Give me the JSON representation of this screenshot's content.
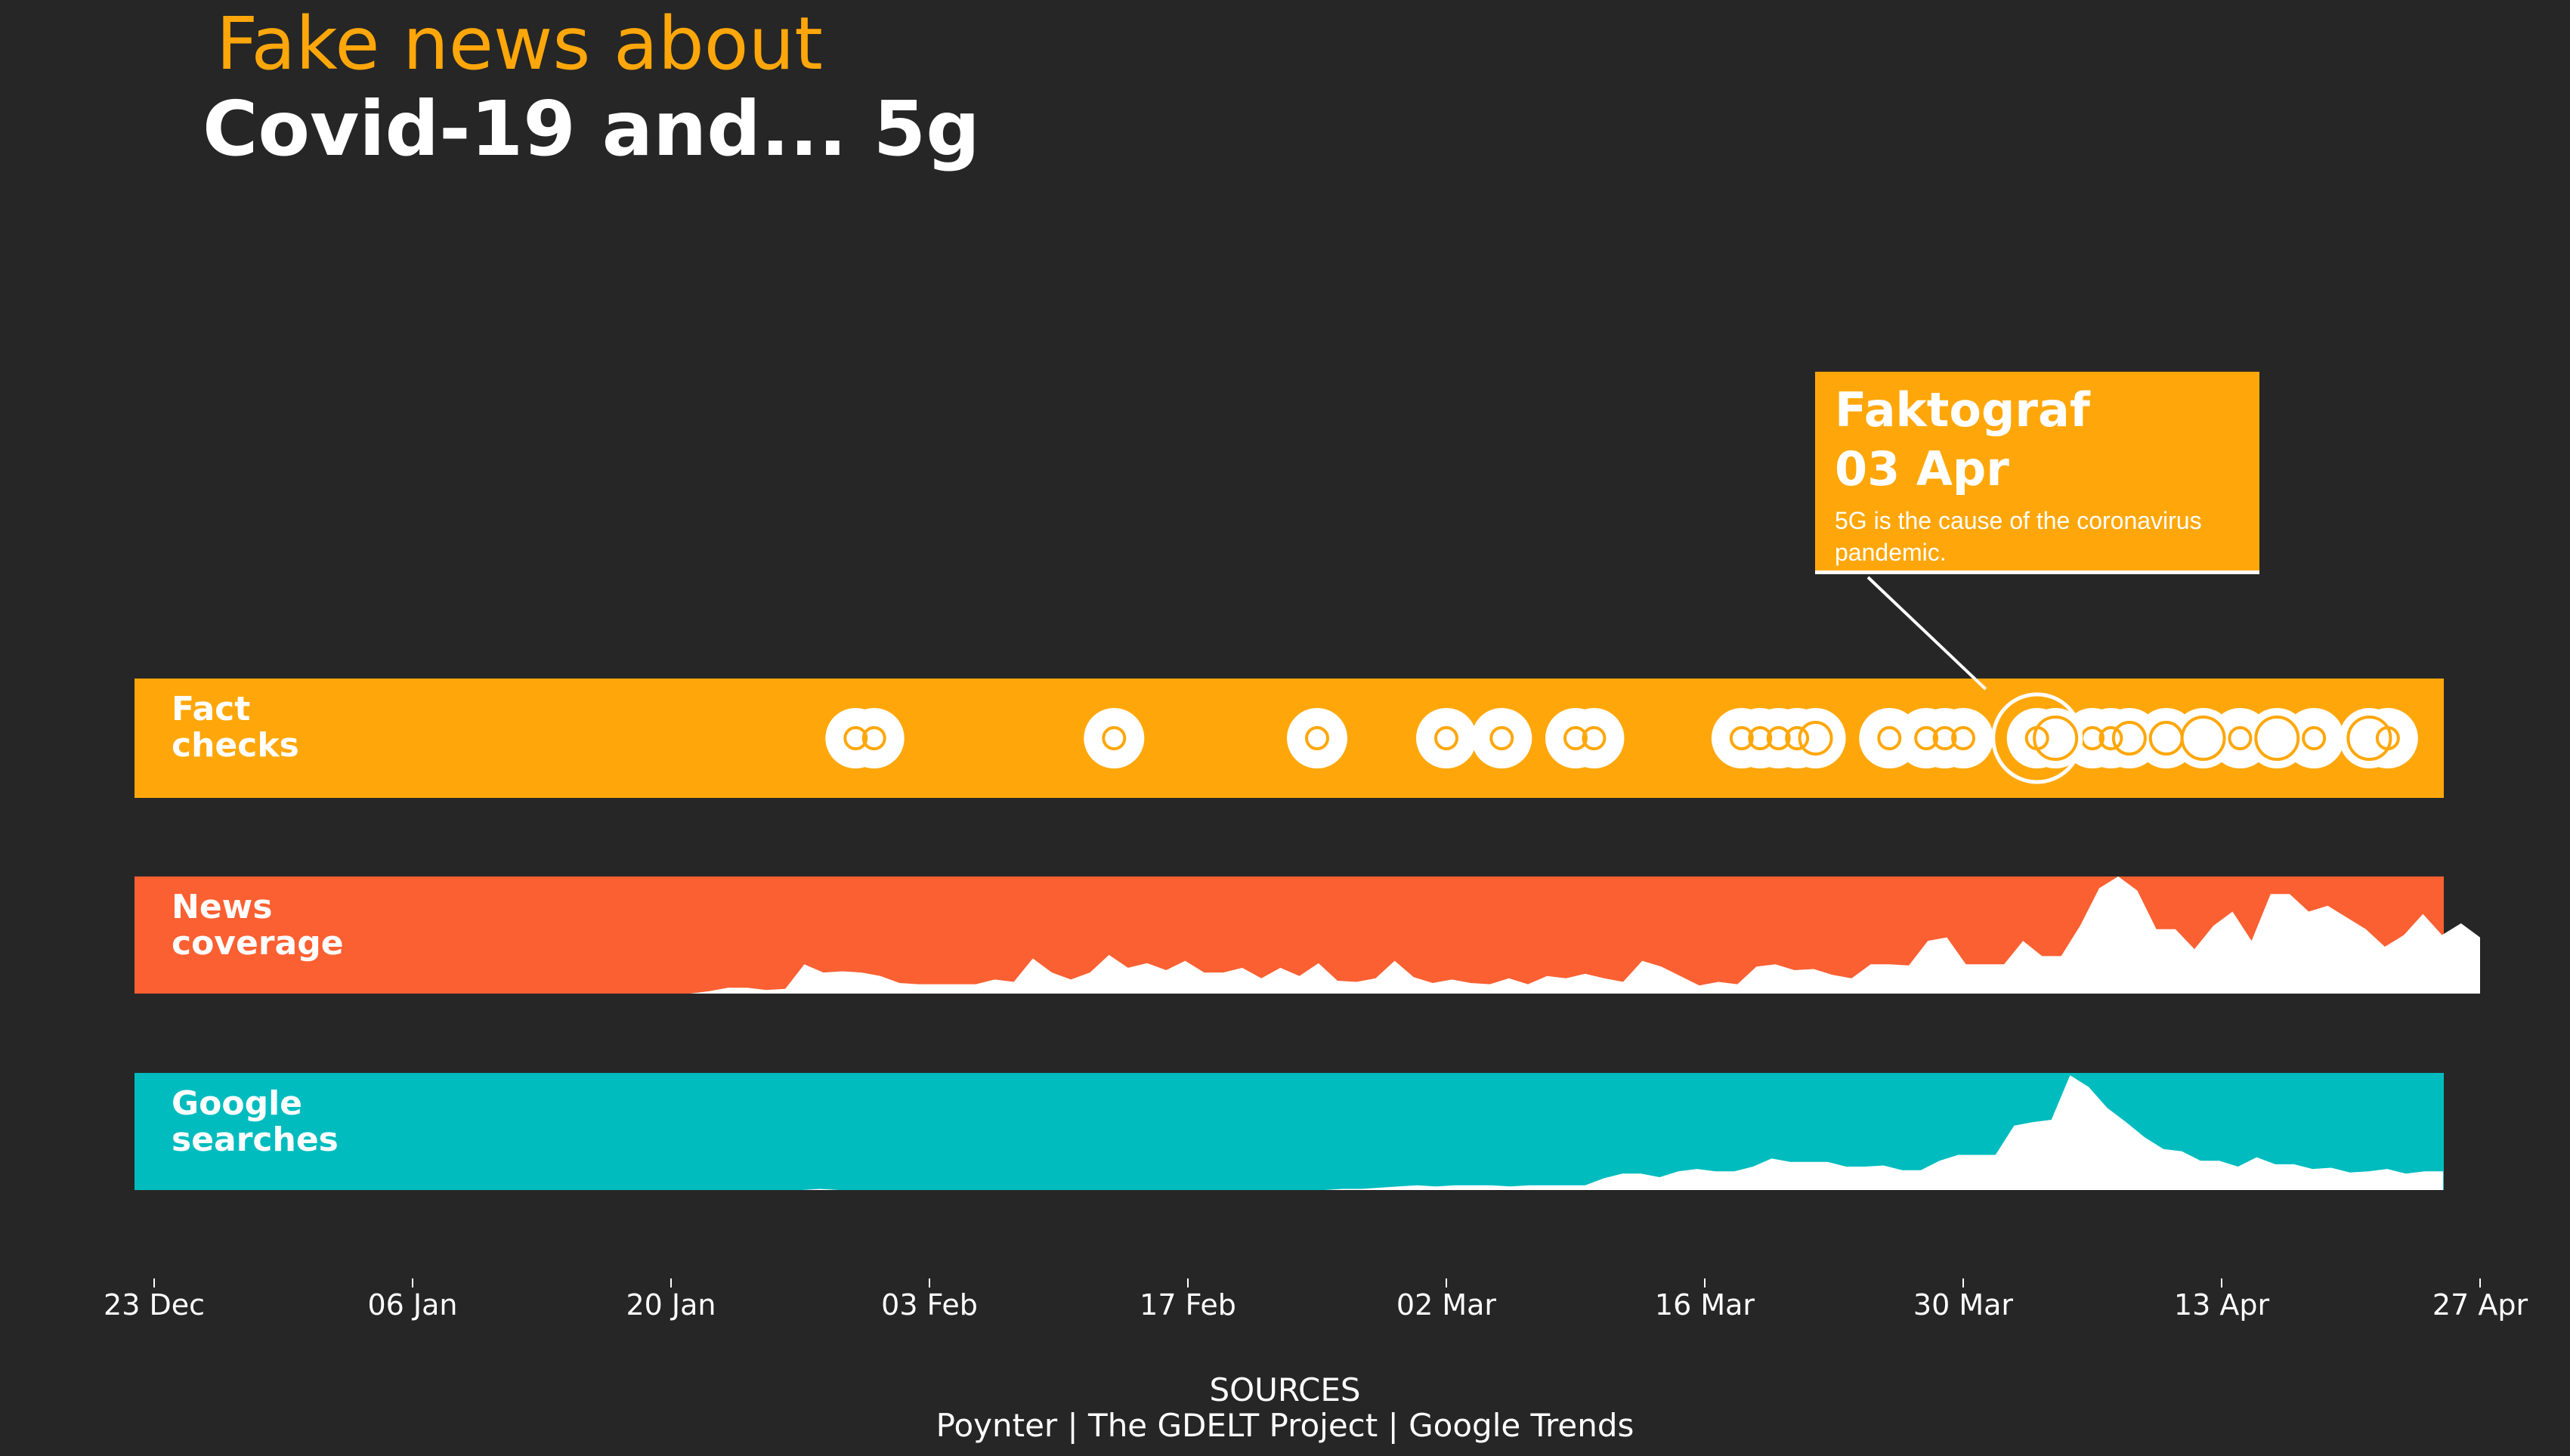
{
  "title_line1": "Fake news about",
  "title_line2": "Covid-19 and... 5g",
  "colors": {
    "background": "#262626",
    "fact_band": "#ffa70a",
    "news_band": "#fa6032",
    "google_band": "#00bcbf",
    "marks": "#ffffff"
  },
  "sources_heading": "SOURCES",
  "sources_line": "Poynter | The GDELT Project | Google Trends",
  "tooltip": {
    "source": "Faktograf",
    "date": "03 Apr",
    "claim": "5G is the cause of the coronavirus pandemic."
  },
  "chart_data": {
    "type": "area",
    "x_axis": {
      "range": [
        "2019-12-23",
        "2020-04-27"
      ],
      "ticks": [
        {
          "date": "2019-12-23",
          "label": "23 Dec"
        },
        {
          "date": "2020-01-06",
          "label": "06 Jan"
        },
        {
          "date": "2020-01-20",
          "label": "20 Jan"
        },
        {
          "date": "2020-02-03",
          "label": "03 Feb"
        },
        {
          "date": "2020-02-17",
          "label": "17 Feb"
        },
        {
          "date": "2020-03-02",
          "label": "02 Mar"
        },
        {
          "date": "2020-03-16",
          "label": "16 Mar"
        },
        {
          "date": "2020-03-30",
          "label": "30 Mar"
        },
        {
          "date": "2020-04-13",
          "label": "13 Apr"
        },
        {
          "date": "2020-04-27",
          "label": "27 Apr"
        }
      ]
    },
    "bands": [
      {
        "label_lines": [
          "Fact",
          "checks"
        ],
        "type": "bubbles",
        "highlighted": "2020-04-03",
        "points": [
          {
            "date": "2020-01-30",
            "n": 1
          },
          {
            "date": "2020-01-31",
            "n": 1
          },
          {
            "date": "2020-02-13",
            "n": 1
          },
          {
            "date": "2020-02-24",
            "n": 1
          },
          {
            "date": "2020-03-02",
            "n": 1
          },
          {
            "date": "2020-03-05",
            "n": 1
          },
          {
            "date": "2020-03-09",
            "n": 1
          },
          {
            "date": "2020-03-10",
            "n": 1
          },
          {
            "date": "2020-03-18",
            "n": 1
          },
          {
            "date": "2020-03-19",
            "n": 1
          },
          {
            "date": "2020-03-20",
            "n": 1
          },
          {
            "date": "2020-03-21",
            "n": 1
          },
          {
            "date": "2020-03-22",
            "n": 2
          },
          {
            "date": "2020-03-26",
            "n": 1
          },
          {
            "date": "2020-03-28",
            "n": 1
          },
          {
            "date": "2020-03-29",
            "n": 1
          },
          {
            "date": "2020-03-30",
            "n": 1
          },
          {
            "date": "2020-04-03",
            "n": 1
          },
          {
            "date": "2020-04-04",
            "n": 3
          },
          {
            "date": "2020-04-06",
            "n": 1
          },
          {
            "date": "2020-04-07",
            "n": 1
          },
          {
            "date": "2020-04-08",
            "n": 2
          },
          {
            "date": "2020-04-10",
            "n": 2
          },
          {
            "date": "2020-04-12",
            "n": 3
          },
          {
            "date": "2020-04-14",
            "n": 1
          },
          {
            "date": "2020-04-16",
            "n": 3
          },
          {
            "date": "2020-04-18",
            "n": 1
          },
          {
            "date": "2020-04-21",
            "n": 3
          },
          {
            "date": "2020-04-22",
            "n": 1
          }
        ]
      },
      {
        "label_lines": [
          "News",
          "coverage"
        ],
        "type": "area",
        "ylim": [
          0,
          100
        ],
        "start": "2020-01-20",
        "values": [
          0,
          0,
          2,
          5,
          5,
          3,
          4,
          25,
          18,
          19,
          18,
          15,
          9,
          8,
          8,
          8,
          8,
          12,
          10,
          30,
          18,
          12,
          18,
          33,
          22,
          26,
          20,
          28,
          18,
          18,
          22,
          13,
          22,
          15,
          26,
          11,
          10,
          13,
          28,
          14,
          9,
          12,
          9,
          8,
          13,
          8,
          15,
          13,
          17,
          13,
          10,
          28,
          23,
          15,
          7,
          10,
          8,
          23,
          25,
          20,
          21,
          16,
          13,
          25,
          25,
          24,
          45,
          48,
          25,
          25,
          25,
          45,
          32,
          32,
          58,
          90,
          110,
          88,
          55,
          55,
          38,
          58,
          70,
          45,
          85,
          85,
          70,
          75,
          65,
          55,
          40,
          50,
          68,
          50,
          60,
          48
        ]
      },
      {
        "label_lines": [
          "Google",
          "searches"
        ],
        "type": "area",
        "ylim": [
          0,
          100
        ],
        "start": "2020-01-20",
        "end": "2020-04-25",
        "values": [
          0,
          0,
          0,
          0,
          0,
          0,
          0,
          0,
          1,
          0,
          0,
          0,
          0,
          0,
          0,
          0,
          0,
          0,
          0,
          0,
          0,
          0,
          0,
          0,
          0,
          0,
          0,
          0,
          0,
          0,
          0,
          0,
          0,
          0,
          0,
          0,
          1,
          1,
          2,
          3,
          4,
          3,
          4,
          4,
          4,
          3,
          4,
          4,
          4,
          4,
          10,
          14,
          14,
          11,
          16,
          18,
          16,
          16,
          20,
          27,
          24,
          24,
          24,
          20,
          20,
          21,
          17,
          17,
          25,
          30,
          30,
          30,
          55,
          58,
          60,
          98,
          88,
          70,
          58,
          45,
          35,
          33,
          25,
          25,
          20,
          28,
          22,
          22,
          18,
          19,
          15,
          16,
          18,
          14,
          16,
          16
        ]
      }
    ]
  }
}
